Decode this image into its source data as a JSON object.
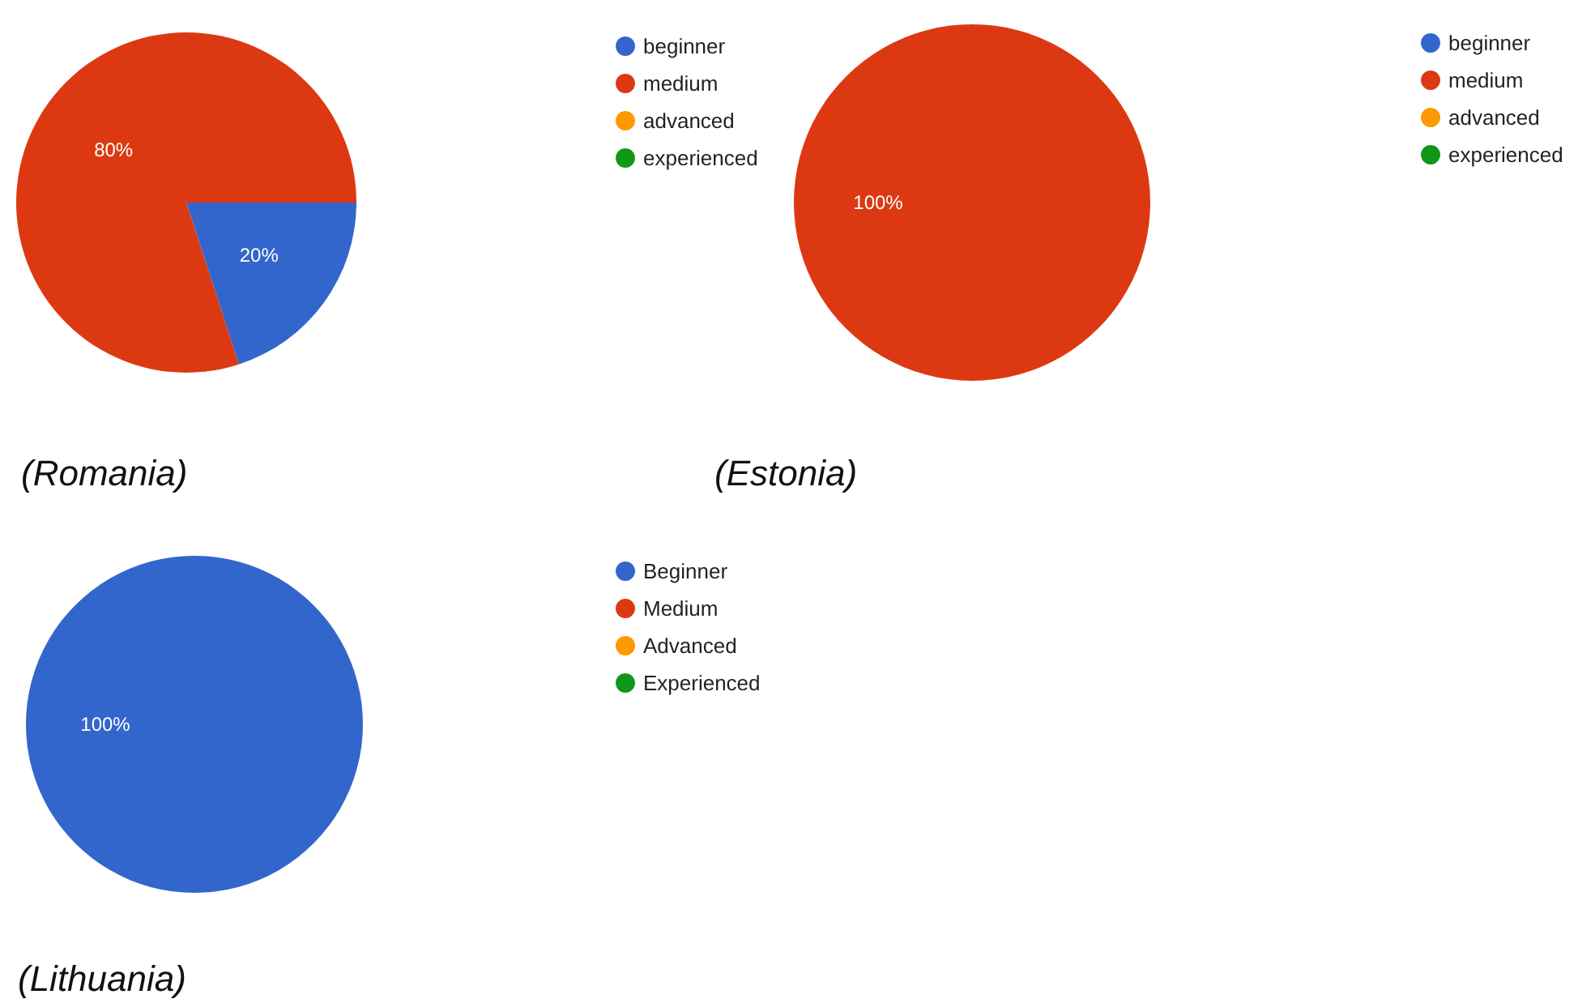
{
  "chart_data": [
    {
      "type": "pie",
      "title": "(Romania)",
      "categories": [
        "beginner",
        "medium",
        "advanced",
        "experienced"
      ],
      "values": [
        20,
        80,
        0,
        0
      ],
      "colors": [
        "#3366cc",
        "#dc3912",
        "#ff9900",
        "#109618"
      ],
      "value_labels": [
        "20%",
        "80%",
        null,
        null
      ],
      "legend": "top right"
    },
    {
      "type": "pie",
      "title": "(Estonia)",
      "categories": [
        "beginner",
        "medium",
        "advanced",
        "experienced"
      ],
      "values": [
        0,
        100,
        0,
        0
      ],
      "colors": [
        "#3366cc",
        "#dc3912",
        "#ff9900",
        "#109618"
      ],
      "value_labels": [
        null,
        "100%",
        null,
        null
      ],
      "legend": "top right"
    },
    {
      "type": "pie",
      "title": "(Lithuania)",
      "categories": [
        "Beginner",
        "Medium",
        "Advanced",
        "Experienced"
      ],
      "values": [
        100,
        0,
        0,
        0
      ],
      "colors": [
        "#3366cc",
        "#dc3912",
        "#ff9900",
        "#109618"
      ],
      "value_labels": [
        "100%",
        null,
        null,
        null
      ],
      "legend": "top right"
    }
  ]
}
